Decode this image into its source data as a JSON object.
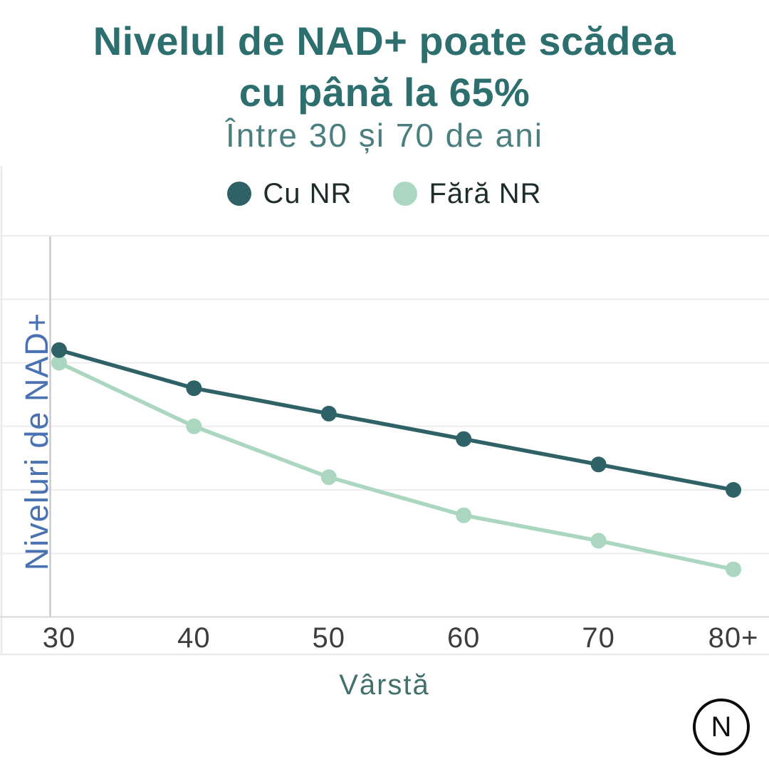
{
  "title": {
    "line1": "Nivelul de NAD+ poate scădea",
    "line2": "cu până la 65%"
  },
  "subtitle": "Între 30 și 70 de ani",
  "legend": {
    "items": [
      {
        "label": "Cu NR",
        "color": "#2e6266"
      },
      {
        "label": "Fără NR",
        "color": "#abd6bf"
      }
    ]
  },
  "chart_data": {
    "type": "line",
    "title": "Nivelul de NAD+ poate scădea cu până la 65%",
    "subtitle": "Între 30 și 70 de ani",
    "x": [
      "30",
      "40",
      "50",
      "60",
      "70",
      "80+"
    ],
    "series": [
      {
        "name": "Cu NR",
        "color": "#2e6266",
        "values": [
          84,
          72,
          64,
          56,
          48,
          40
        ]
      },
      {
        "name": "Fără NR",
        "color": "#abd6bf",
        "values": [
          80,
          60,
          44,
          32,
          24,
          15
        ]
      }
    ],
    "xlabel": "Vârstă",
    "ylabel": "Niveluri de NAD+",
    "ylim": [
      0,
      120
    ],
    "gridline_step": 20,
    "grid": "horizontal",
    "legend_position": "top",
    "y_tick_labels_shown": false
  },
  "logo": {
    "letter": "N"
  }
}
